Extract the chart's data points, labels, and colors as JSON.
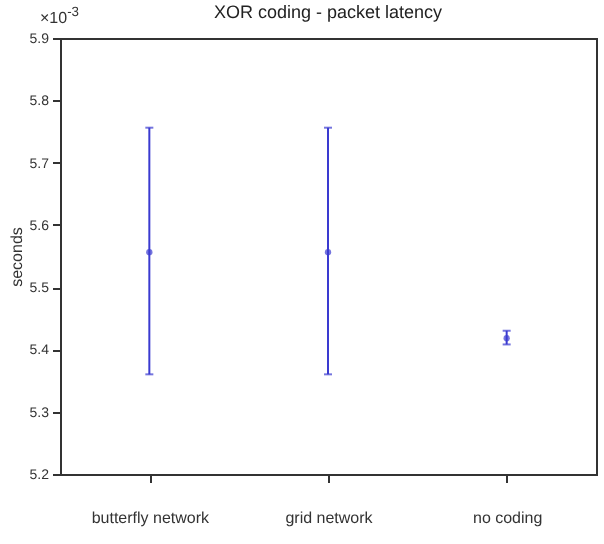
{
  "chart_data": {
    "type": "scatter",
    "title": "XOR coding - packet latency",
    "ylabel": "seconds",
    "annotations": [
      "×10$^{-3}$"
    ],
    "categories": [
      "butterfly network",
      "grid network",
      "no coding"
    ],
    "series": [
      {
        "color": "#3a3ad0",
        "values": [
          5.556,
          5.556,
          5.418
        ],
        "errors": [
          [
            5.36,
            5.756
          ],
          [
            5.36,
            5.756
          ],
          [
            5.408,
            5.43
          ]
        ]
      }
    ],
    "ylim": [
      5.2,
      5.9
    ],
    "yticks": [
      5.2,
      5.3,
      5.4,
      5.5,
      5.6,
      5.7,
      5.8,
      5.9
    ],
    "marker": "circle"
  }
}
